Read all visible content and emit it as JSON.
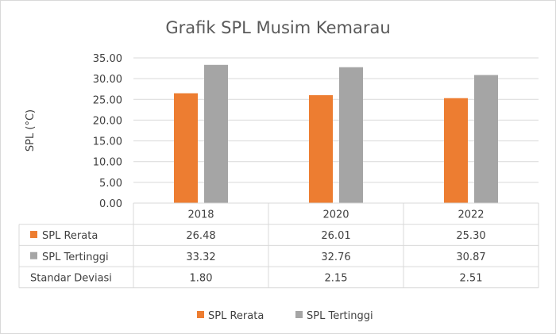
{
  "chart_data": {
    "type": "bar",
    "title": "Grafik SPL Musim Kemarau",
    "xlabel": "",
    "ylabel": "SPL (°C)",
    "ylim": [
      0,
      35
    ],
    "yticks": [
      "0.00",
      "5.00",
      "10.00",
      "15.00",
      "20.00",
      "25.00",
      "30.00",
      "35.00"
    ],
    "categories": [
      "2018",
      "2020",
      "2022"
    ],
    "series": [
      {
        "name": "SPL Rerata",
        "color": "#ED7D31",
        "values": [
          26.48,
          26.01,
          25.3
        ],
        "labels": [
          "26.48",
          "26.01",
          "25.30"
        ]
      },
      {
        "name": "SPL Tertinggi",
        "color": "#A5A5A5",
        "values": [
          33.32,
          32.76,
          30.87
        ],
        "labels": [
          "33.32",
          "32.76",
          "30.87"
        ]
      }
    ],
    "table_extra_rows": [
      {
        "name": "Standar Deviasi",
        "labels": [
          "1.80",
          "2.15",
          "2.51"
        ]
      }
    ],
    "grid": true,
    "legend": "bottom",
    "data_table": true
  }
}
